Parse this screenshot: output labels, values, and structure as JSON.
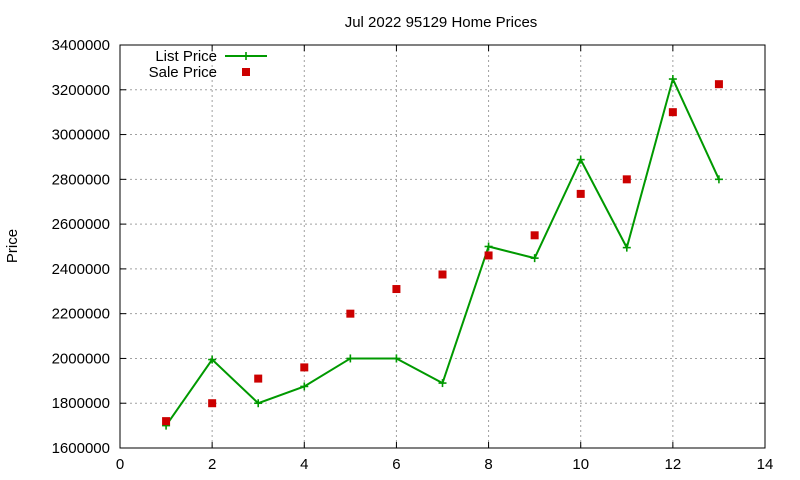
{
  "chart_data": {
    "type": "line",
    "title": "Jul 2022 95129 Home Prices",
    "xlabel": "",
    "ylabel": "Price",
    "xlim": [
      0,
      14
    ],
    "ylim": [
      1600000,
      3400000
    ],
    "x_ticks": [
      0,
      2,
      4,
      6,
      8,
      10,
      12,
      14
    ],
    "y_ticks": [
      1600000,
      1800000,
      2000000,
      2200000,
      2400000,
      2600000,
      2800000,
      3000000,
      3200000,
      3400000
    ],
    "grid": true,
    "legend_position": "top-left",
    "series": [
      {
        "name": "List Price",
        "type": "line",
        "color": "#009900",
        "marker": "plus",
        "x": [
          1,
          2,
          3,
          4,
          5,
          6,
          7,
          8,
          9,
          10,
          11,
          12,
          13
        ],
        "values": [
          1700000,
          1995000,
          1800000,
          1875000,
          2000000,
          2000000,
          1890000,
          2500000,
          2448000,
          2888000,
          2495000,
          3248000,
          2800000
        ]
      },
      {
        "name": "Sale Price",
        "type": "scatter",
        "color": "#cc0000",
        "marker": "square",
        "x": [
          1,
          2,
          3,
          4,
          5,
          6,
          7,
          8,
          9,
          10,
          11,
          12,
          13
        ],
        "values": [
          1720000,
          1800000,
          1910000,
          1960000,
          2200000,
          2310000,
          2375000,
          2460000,
          2550000,
          2735000,
          2800000,
          3100000,
          3225000
        ]
      }
    ]
  }
}
